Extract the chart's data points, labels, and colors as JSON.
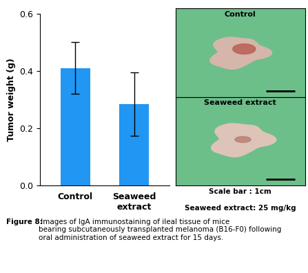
{
  "categories": [
    "Control",
    "Seaweed\nextract"
  ],
  "values": [
    0.41,
    0.285
  ],
  "errors": [
    0.09,
    0.11
  ],
  "bar_color": "#2196F3",
  "ylabel": "Tumor weight (g)",
  "ylim": [
    0,
    0.6
  ],
  "yticks": [
    0.0,
    0.2,
    0.4,
    0.6
  ],
  "bar_width": 0.5,
  "fig_caption_bold": "Figure 8:",
  "fig_caption_rest": " Images of IgA immunostaining of ileal tissue of mice\nbearing subcutaneously transplanted melanoma (B16-F0) following\noral administration of seaweed extract for 15 days.",
  "scale_bar_text": "Scale bar : 1cm",
  "dosage_text": "Seaweed extract: 25 mg/kg",
  "photo_bg_color": "#6DBF8A",
  "control_label": "Control",
  "seaweed_label": "Seaweed extract",
  "tumor1_color": [
    0.84,
    0.71,
    0.67
  ],
  "tumor1_red": [
    0.72,
    0.38,
    0.32
  ],
  "tumor2_color": [
    0.87,
    0.77,
    0.72
  ],
  "tumor2_red": [
    0.72,
    0.5,
    0.45
  ]
}
